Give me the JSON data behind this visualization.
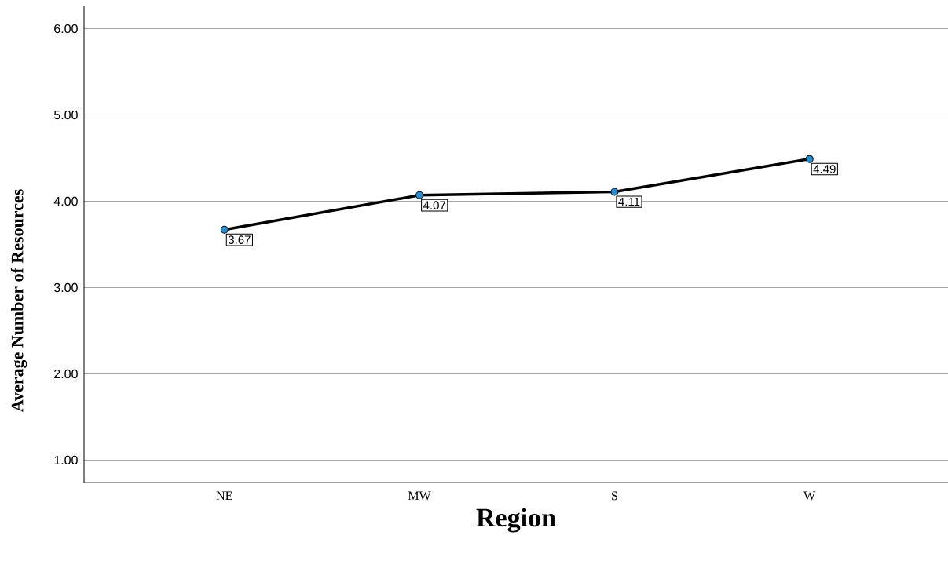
{
  "chart_data": {
    "type": "line",
    "xlabel": "Region",
    "ylabel": "Average Number of Resources",
    "categories": [
      "NE",
      "MW",
      "S",
      "W"
    ],
    "series": [
      {
        "color": "#000000",
        "values": [
          3.67,
          4.07,
          4.11,
          4.49
        ]
      }
    ],
    "ylim": [
      0.74,
      6.26
    ],
    "yticks": [
      {
        "value": 1,
        "label": "1.00"
      },
      {
        "value": 2,
        "label": "2.00"
      },
      {
        "value": 3,
        "label": "3.00"
      },
      {
        "value": 4,
        "label": "4.00"
      },
      {
        "value": 5,
        "label": "5.00"
      },
      {
        "value": 6,
        "label": "6.00"
      }
    ],
    "grid": "y",
    "marker": "circle",
    "line_style": "solid",
    "data_labels": true
  }
}
